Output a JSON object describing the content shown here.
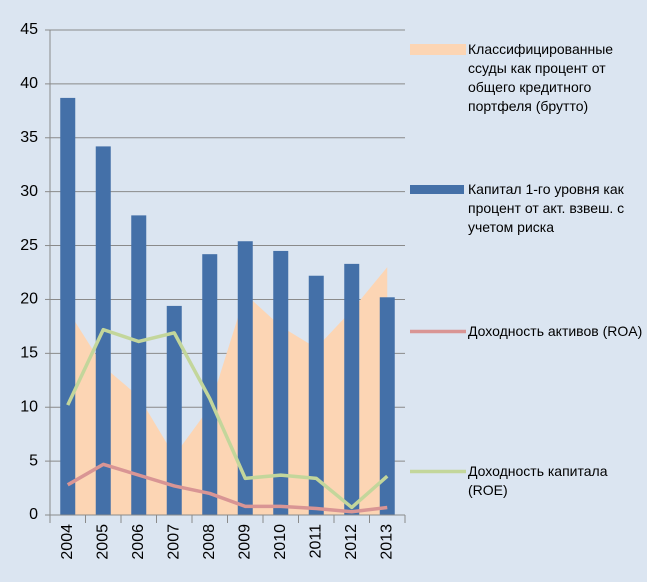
{
  "chart_data": {
    "type": "combo",
    "categories": [
      "2004",
      "2005",
      "2006",
      "2007",
      "2008",
      "2009",
      "2010",
      "2011",
      "2012",
      "2013"
    ],
    "series": [
      {
        "name": "Классифицированные ссуды как процент от общего кредитного портфеля (брутто)",
        "type": "area",
        "color": "#fcd5b4",
        "values": [
          19,
          13.8,
          11,
          5.5,
          10,
          20.5,
          17.5,
          15.5,
          19,
          23
        ]
      },
      {
        "name": "Капитал 1-го уровня как процент от акт. взвеш. с учетом риска",
        "type": "bar",
        "color": "#4470a8",
        "values": [
          38.7,
          34.2,
          27.8,
          19.4,
          24.2,
          25.4,
          24.5,
          22.2,
          23.3,
          20.2
        ]
      },
      {
        "name": "Доходность активов (ROA)",
        "type": "line",
        "color": "#d99594",
        "values": [
          2.8,
          4.7,
          3.7,
          2.7,
          2.0,
          0.8,
          0.8,
          0.6,
          0.3,
          0.7
        ]
      },
      {
        "name": "Доходность капитала (ROE)",
        "type": "line",
        "color": "#c3d69b",
        "values": [
          10.2,
          17.2,
          16.1,
          16.9,
          10.8,
          3.4,
          3.7,
          3.4,
          0.7,
          3.6
        ]
      }
    ],
    "ylim": [
      0,
      45
    ],
    "yticks": [
      0,
      5,
      10,
      15,
      20,
      25,
      30,
      35,
      40,
      45
    ],
    "grid": true,
    "legend": "right"
  }
}
